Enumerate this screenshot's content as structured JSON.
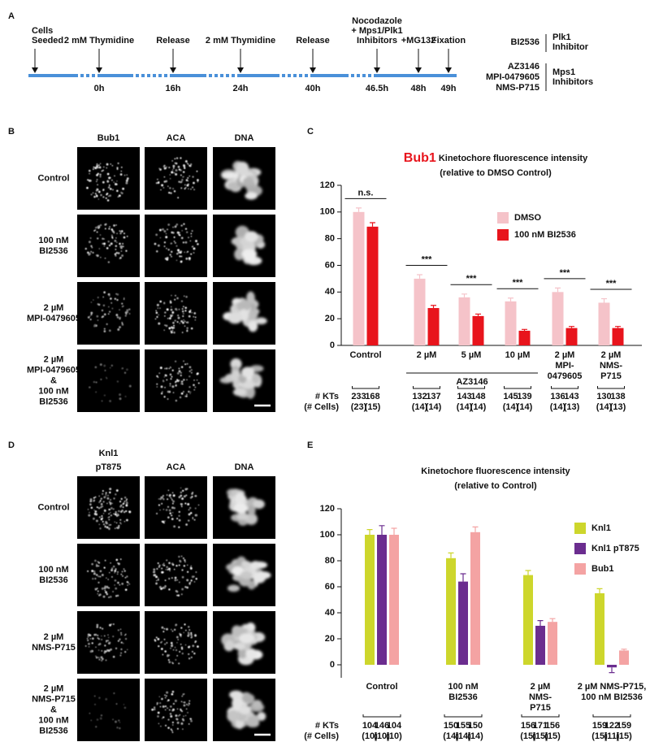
{
  "timeline": {
    "letter": "A",
    "events": [
      {
        "label": "Cells\nSeeded"
      },
      {
        "label": "2 mM Thymidine",
        "time": "0h"
      },
      {
        "label": "Release",
        "time": "16h"
      },
      {
        "label": "2 mM Thymidine",
        "time": "24h"
      },
      {
        "label": "Release",
        "time": "40h"
      },
      {
        "label": "Nocodazole\n+ Mps1/Plk1\nInhibitors",
        "time": "46.5h"
      },
      {
        "label": "+MG132",
        "time": "48h"
      },
      {
        "label": "Fixation",
        "time": "49h"
      }
    ],
    "legend": [
      {
        "drugs": "BI2536",
        "target": "Plk1\nInhibitor"
      },
      {
        "drugs": "AZ3146\nMPI-0479605\nNMS-P715",
        "target": "Mps1\nInhibitors"
      }
    ]
  },
  "images_b": {
    "letter": "B",
    "columns": [
      "Bub1",
      "ACA",
      "DNA"
    ],
    "column_colors": [
      "#e8141c",
      "#555555",
      "#1a1adc"
    ],
    "rows": [
      "Control",
      "100 nM\nBI2536",
      "2 µM\nMPI-0479605",
      "2 µM\nMPI-0479605\n&\n100 nM\nBI2536"
    ]
  },
  "images_d": {
    "letter": "D",
    "columns": [
      "Knl1\npT875",
      "ACA",
      "DNA"
    ],
    "column_colors": [
      "#6b2d8f",
      "#555555",
      "#1a1adc"
    ],
    "rows": [
      "Control",
      "100 nM\nBI2536",
      "2 µM\nNMS-P715",
      "2 µM\nNMS-P715\n&\n100 nM\nBI2536"
    ]
  },
  "chart_data": [
    {
      "type": "bar",
      "panel": "C",
      "title_highlight": "Bub1",
      "title_highlight_color": "#e8141c",
      "title": "Kinetochore fluorescence intensity",
      "subtitle": "(relative to DMSO Control)",
      "categories": [
        "Control",
        "2 µM",
        "5 µM",
        "10 µM",
        "2 µM\nMPI-\n0479605",
        "2 µM\nNMS-\nP715"
      ],
      "group_label": "AZ3146",
      "series": [
        {
          "name": "DMSO",
          "color": "#f5c3c9",
          "values": [
            100,
            50,
            36,
            33,
            40,
            32
          ],
          "errors": [
            3,
            3,
            2.5,
            2.5,
            3,
            3
          ]
        },
        {
          "name": "100 nM BI2536",
          "color": "#e8141c",
          "values": [
            89,
            28,
            22,
            11,
            13,
            13
          ],
          "errors": [
            3,
            2,
            1.5,
            1,
            1.2,
            1.2
          ]
        }
      ],
      "significance": [
        "n.s.",
        "***",
        "***",
        "***",
        "***",
        "***"
      ],
      "ylim": [
        0,
        120
      ],
      "yticks": [
        0,
        20,
        40,
        60,
        80,
        100,
        120
      ],
      "kts_label": "# KTs",
      "cells_label": "(# Cells)",
      "kts": [
        [
          233,
          168
        ],
        [
          132,
          137
        ],
        [
          143,
          148
        ],
        [
          145,
          139
        ],
        [
          136,
          143
        ],
        [
          130,
          138
        ]
      ],
      "cells": [
        [
          "(23)",
          "(15)"
        ],
        [
          "(14)",
          "(14)"
        ],
        [
          "(14)",
          "(14)"
        ],
        [
          "(14)",
          "(14)"
        ],
        [
          "(14)",
          "(13)"
        ],
        [
          "(14)",
          "(13)"
        ]
      ]
    },
    {
      "type": "bar",
      "panel": "E",
      "title": "Kinetochore fluorescence intensity",
      "subtitle": "(relative to Control)",
      "categories": [
        "Control",
        "100 nM\nBI2536",
        "2 µM\nNMS-\nP715",
        "2 µM NMS-P715,\n100 nM BI2536"
      ],
      "series": [
        {
          "name": "Knl1",
          "color": "#cdd62c",
          "values": [
            100,
            82,
            69,
            55
          ],
          "errors": [
            4,
            4,
            3.5,
            3.5
          ]
        },
        {
          "name": "Knl1 pT875",
          "color": "#6b2d8f",
          "values": [
            100,
            64,
            30,
            -2
          ],
          "errors": [
            7,
            6,
            4,
            4
          ]
        },
        {
          "name": "Bub1",
          "color": "#f4a3a3",
          "values": [
            100,
            102,
            33,
            11
          ],
          "errors": [
            5,
            4,
            2.5,
            1
          ]
        }
      ],
      "ylim": [
        -10,
        120
      ],
      "yticks": [
        0,
        20,
        40,
        60,
        80,
        100,
        120
      ],
      "kts_label": "# KTs",
      "cells_label": "(# Cells)",
      "kts": [
        [
          104,
          146,
          104
        ],
        [
          150,
          155,
          150
        ],
        [
          156,
          171,
          156
        ],
        [
          159,
          122,
          159
        ]
      ],
      "cells": [
        [
          "(10)",
          "(10)",
          "(10)"
        ],
        [
          "(14)",
          "(14)",
          "(14)"
        ],
        [
          "(15)",
          "(15)",
          "(15)"
        ],
        [
          "(15)",
          "(11)",
          "(15)"
        ]
      ]
    }
  ]
}
